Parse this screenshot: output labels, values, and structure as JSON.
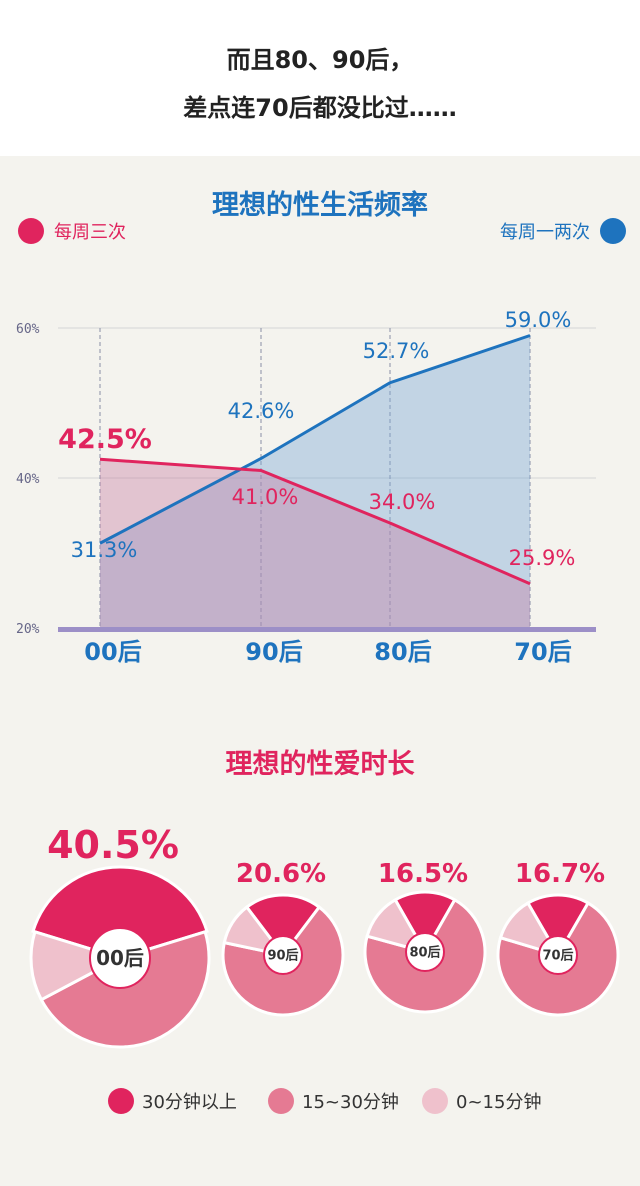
{
  "header": {
    "line1": "而且80、90后，",
    "line2": "差点连70后都没比过……"
  },
  "colors": {
    "pink": "#e0245e",
    "blue": "#1e73be",
    "pink_mid": "#e57a93",
    "pink_light": "#efc1cc"
  },
  "chart_data": [
    {
      "type": "line",
      "title": "理想的性生活频率",
      "categories": [
        "00后",
        "90后",
        "80后",
        "70后"
      ],
      "ylim": [
        20,
        60
      ],
      "y_ticks": [
        "20%",
        "40%",
        "60%"
      ],
      "grid": true,
      "series": [
        {
          "name": "每周三次",
          "values": [
            42.5,
            41.0,
            34.0,
            25.9
          ],
          "labels": [
            "42.5%",
            "41.0%",
            "34.0%",
            "25.9%"
          ],
          "color": "#e0245e",
          "legend_position": "top-left"
        },
        {
          "name": "每周一两次",
          "values": [
            31.3,
            42.6,
            52.7,
            59.0
          ],
          "labels": [
            "31.3%",
            "42.6%",
            "52.7%",
            "59.0%"
          ],
          "color": "#1e73be",
          "legend_position": "top-right"
        }
      ]
    },
    {
      "type": "pie",
      "title": "理想的性爱时长",
      "legend": [
        "30分钟以上",
        "15~30分钟",
        "0~15分钟"
      ],
      "legend_colors": [
        "#e0245e",
        "#e57a93",
        "#efc1cc"
      ],
      "pies": [
        {
          "label": "00后",
          "headline": "40.5%",
          "values": [
            40.5,
            47.0,
            12.5
          ]
        },
        {
          "label": "90后",
          "headline": "20.6%",
          "values": [
            20.6,
            68.0,
            11.4
          ]
        },
        {
          "label": "80后",
          "headline": "16.5%",
          "values": [
            16.5,
            71.0,
            12.5
          ]
        },
        {
          "label": "70后",
          "headline": "16.7%",
          "values": [
            16.7,
            71.3,
            12.0
          ]
        }
      ]
    }
  ]
}
